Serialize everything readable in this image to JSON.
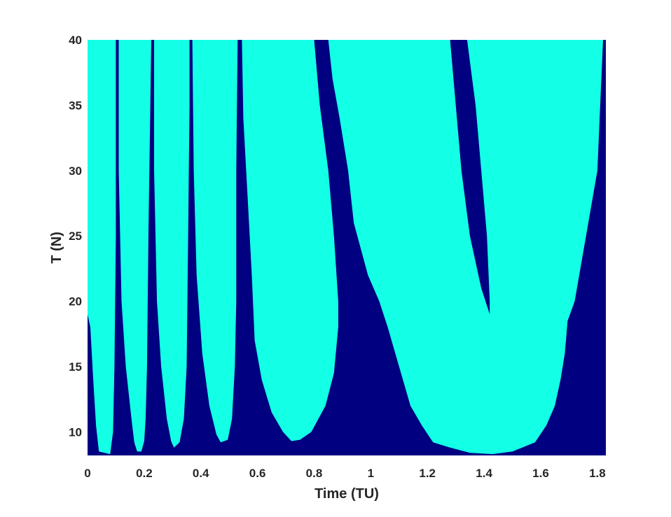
{
  "chart_data": {
    "type": "heatmap",
    "title": "",
    "xlabel": "Time (TU)",
    "ylabel": "T (N)",
    "xlim": [
      0,
      1.83
    ],
    "ylim": [
      8.2,
      40
    ],
    "x_ticks": [
      "0",
      "0.2",
      "0.4",
      "0.6",
      "0.8",
      "1",
      "1.2",
      "1.4",
      "1.6",
      "1.8"
    ],
    "y_ticks": [
      "10",
      "15",
      "20",
      "25",
      "30",
      "35",
      "40"
    ],
    "x_tick_values": [
      0,
      0.2,
      0.4,
      0.6,
      0.8,
      1,
      1.2,
      1.4,
      1.6,
      1.8
    ],
    "y_tick_values": [
      10,
      15,
      20,
      25,
      30,
      35,
      40
    ],
    "grid": false,
    "legend": "none",
    "colors": {
      "background": "#000080",
      "region": "#13ffe6"
    },
    "regions": [
      {
        "left": [
          [
            0.0,
            40
          ],
          [
            0.0,
            25
          ],
          [
            0.0,
            19
          ]
        ],
        "bottom": [
          [
            0.01,
            18
          ],
          [
            0.02,
            14
          ],
          [
            0.03,
            10.5
          ],
          [
            0.04,
            8.5
          ],
          [
            0.08,
            8.3
          ]
        ],
        "right": [
          [
            0.09,
            10
          ],
          [
            0.095,
            15
          ],
          [
            0.1,
            25
          ],
          [
            0.1,
            40
          ]
        ]
      },
      {
        "left": [
          [
            0.11,
            40
          ],
          [
            0.11,
            30
          ],
          [
            0.12,
            20
          ],
          [
            0.135,
            15
          ],
          [
            0.155,
            11
          ],
          [
            0.165,
            9.2
          ]
        ],
        "bottom": [
          [
            0.175,
            8.5
          ],
          [
            0.19,
            8.5
          ],
          [
            0.2,
            9.3
          ]
        ],
        "right": [
          [
            0.205,
            11
          ],
          [
            0.21,
            15
          ],
          [
            0.215,
            25
          ],
          [
            0.225,
            40
          ]
        ]
      },
      {
        "left": [
          [
            0.235,
            40
          ],
          [
            0.235,
            30
          ],
          [
            0.245,
            20
          ],
          [
            0.26,
            15
          ],
          [
            0.28,
            11
          ],
          [
            0.295,
            9.3
          ]
        ],
        "bottom": [
          [
            0.305,
            8.8
          ],
          [
            0.325,
            9.2
          ]
        ],
        "right": [
          [
            0.34,
            11
          ],
          [
            0.35,
            15
          ],
          [
            0.355,
            25
          ],
          [
            0.36,
            35
          ],
          [
            0.36,
            40
          ]
        ]
      },
      {
        "left": [
          [
            0.37,
            40
          ],
          [
            0.375,
            30
          ],
          [
            0.385,
            22
          ],
          [
            0.405,
            16
          ],
          [
            0.43,
            12
          ],
          [
            0.455,
            9.8
          ]
        ],
        "bottom": [
          [
            0.47,
            9.2
          ],
          [
            0.495,
            9.4
          ]
        ],
        "right": [
          [
            0.51,
            11
          ],
          [
            0.52,
            15
          ],
          [
            0.525,
            20
          ],
          [
            0.525,
            30
          ],
          [
            0.53,
            40
          ]
        ]
      },
      {
        "left": [
          [
            0.545,
            40
          ],
          [
            0.55,
            34
          ],
          [
            0.565,
            28
          ],
          [
            0.58,
            22
          ],
          [
            0.59,
            17
          ],
          [
            0.615,
            14
          ],
          [
            0.65,
            11.5
          ],
          [
            0.69,
            10
          ]
        ],
        "bottom": [
          [
            0.72,
            9.3
          ],
          [
            0.75,
            9.4
          ],
          [
            0.79,
            10
          ]
        ],
        "right": [
          [
            0.84,
            12
          ],
          [
            0.87,
            14.5
          ],
          [
            0.885,
            18
          ],
          [
            0.885,
            20
          ],
          [
            0.87,
            25
          ],
          [
            0.85,
            30
          ],
          [
            0.82,
            35
          ],
          [
            0.8,
            40
          ]
        ]
      },
      {
        "left": [
          [
            0.85,
            40
          ],
          [
            0.865,
            37
          ],
          [
            0.89,
            34
          ],
          [
            0.92,
            30
          ],
          [
            0.94,
            26
          ],
          [
            0.965,
            24
          ],
          [
            0.99,
            22
          ],
          [
            1.03,
            20
          ],
          [
            1.06,
            18
          ],
          [
            1.1,
            15
          ],
          [
            1.14,
            12
          ],
          [
            1.18,
            10.5
          ],
          [
            1.22,
            9.2
          ]
        ],
        "bottom": [
          [
            1.28,
            8.8
          ],
          [
            1.35,
            8.4
          ],
          [
            1.43,
            8.3
          ],
          [
            1.5,
            8.5
          ],
          [
            1.58,
            9.2
          ]
        ],
        "right": [
          [
            1.62,
            10.5
          ],
          [
            1.65,
            12
          ],
          [
            1.67,
            14
          ],
          [
            1.685,
            16
          ],
          [
            1.695,
            18.5
          ],
          [
            1.72,
            20
          ],
          [
            1.76,
            25
          ],
          [
            1.8,
            30
          ],
          [
            1.81,
            35
          ],
          [
            1.82,
            40
          ]
        ]
      }
    ],
    "holes": [
      {
        "points": [
          [
            1.28,
            40
          ],
          [
            1.3,
            35
          ],
          [
            1.32,
            30
          ],
          [
            1.35,
            25
          ],
          [
            1.39,
            21
          ],
          [
            1.42,
            19
          ],
          [
            1.42,
            20
          ],
          [
            1.41,
            25
          ],
          [
            1.39,
            30
          ],
          [
            1.37,
            35
          ],
          [
            1.34,
            40
          ]
        ]
      }
    ]
  }
}
